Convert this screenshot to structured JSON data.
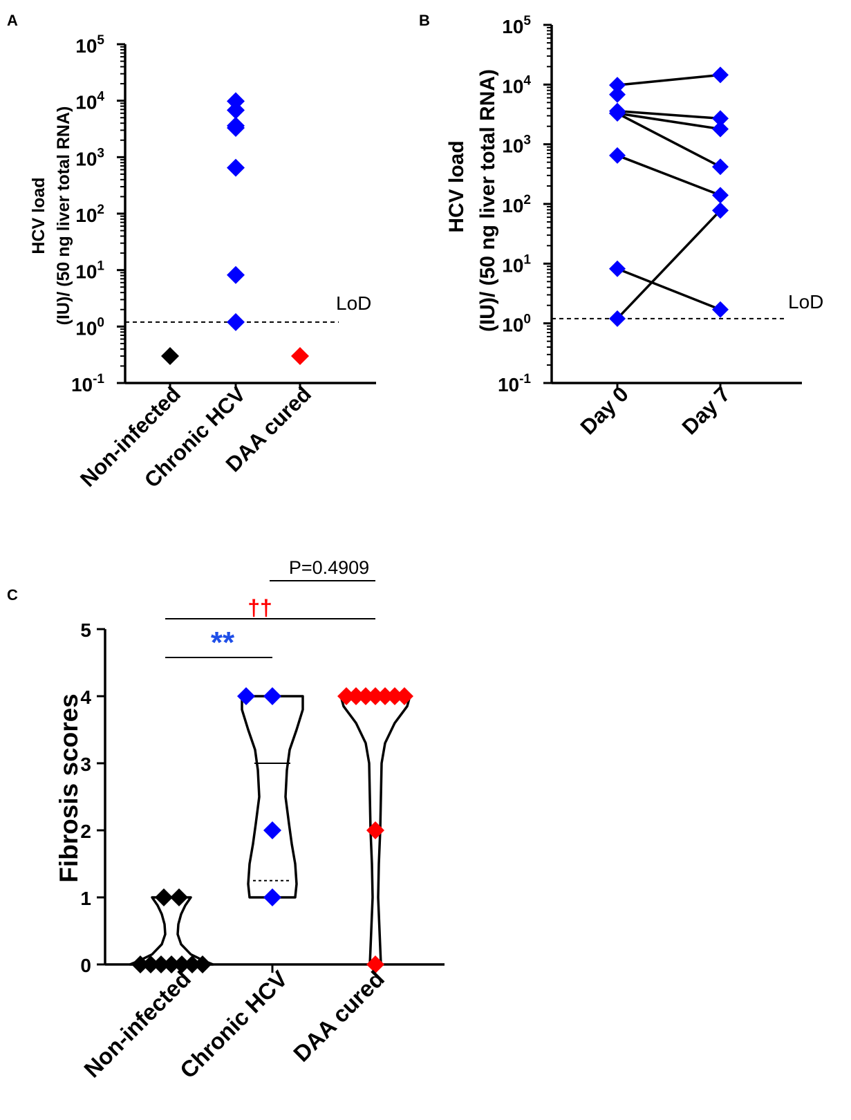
{
  "colors": {
    "axis": "#000000",
    "blue": "#0000ff",
    "red": "#ff0000",
    "black": "#000000",
    "stars_blue": "#1f4fe8",
    "dagger_red": "#ff0000"
  },
  "chart_data": [
    {
      "panel": "A",
      "type": "scatter",
      "scale": "log10",
      "ylim": [
        0.1,
        100000
      ],
      "ylabel_line1": "HCV load",
      "ylabel_line2": "(IU)/ (50 ng liver total RNA)",
      "yticks": [
        {
          "base": "10",
          "exp": "-1"
        },
        {
          "base": "10",
          "exp": "0"
        },
        {
          "base": "10",
          "exp": "1"
        },
        {
          "base": "10",
          "exp": "2"
        },
        {
          "base": "10",
          "exp": "3"
        },
        {
          "base": "10",
          "exp": "4"
        },
        {
          "base": "10",
          "exp": "5"
        }
      ],
      "categories": [
        "Non-infected",
        "Chronic HCV",
        "DAA cured"
      ],
      "lod_value": 1.2,
      "lod_label": "LoD",
      "series": [
        {
          "name": "Non-infected",
          "color": "black",
          "values": [
            0.3
          ]
        },
        {
          "name": "Chronic HCV",
          "color": "blue",
          "values": [
            9800,
            6800,
            3600,
            3300,
            650,
            8.2,
            1.2
          ]
        },
        {
          "name": "DAA cured",
          "color": "red",
          "values": [
            0.3
          ]
        }
      ]
    },
    {
      "panel": "B",
      "type": "line",
      "scale": "log10",
      "ylim": [
        0.1,
        100000
      ],
      "ylabel_line1": "HCV load",
      "ylabel_line2": "(IU)/ (50 ng liver total RNA)",
      "yticks": [
        {
          "base": "10",
          "exp": "-1"
        },
        {
          "base": "10",
          "exp": "0"
        },
        {
          "base": "10",
          "exp": "1"
        },
        {
          "base": "10",
          "exp": "2"
        },
        {
          "base": "10",
          "exp": "3"
        },
        {
          "base": "10",
          "exp": "4"
        },
        {
          "base": "10",
          "exp": "5"
        }
      ],
      "categories": [
        "Day 0",
        "Day 7"
      ],
      "lod_value": 1.2,
      "lod_label": "LoD",
      "day0_extra": [
        6800
      ],
      "pairs": [
        {
          "day0": 9800,
          "day7": 14500
        },
        {
          "day0": 3600,
          "day7": 2700
        },
        {
          "day0": 3300,
          "day7": 1800
        },
        {
          "day0": 650,
          "day7": 140
        },
        {
          "day0": 3300,
          "day7": 420
        },
        {
          "day0": 8.2,
          "day7": 1.7
        },
        {
          "day0": 1.2,
          "day7": 78
        }
      ]
    },
    {
      "panel": "C",
      "type": "violin",
      "ylim": [
        0,
        5
      ],
      "ylabel": "Fibrosis scores",
      "yticks": [
        "0",
        "1",
        "2",
        "3",
        "4",
        "5"
      ],
      "categories": [
        "Non-infected",
        "Chronic HCV",
        "DAA cured"
      ],
      "groups": [
        {
          "name": "Non-infected",
          "color": "black",
          "points": [
            1,
            1,
            0,
            0,
            0,
            0,
            0,
            0,
            0
          ],
          "median": 0
        },
        {
          "name": "Chronic HCV",
          "color": "blue",
          "points": [
            4,
            4,
            2,
            1
          ],
          "median": 3,
          "quartile": 1.25
        },
        {
          "name": "DAA cured",
          "color": "red",
          "points": [
            4,
            4,
            4,
            4,
            4,
            4,
            4,
            2,
            0
          ],
          "median": 4
        }
      ],
      "annotations": {
        "stars": "**",
        "daggers": "††",
        "pvalue": "P=0.4909"
      }
    }
  ]
}
